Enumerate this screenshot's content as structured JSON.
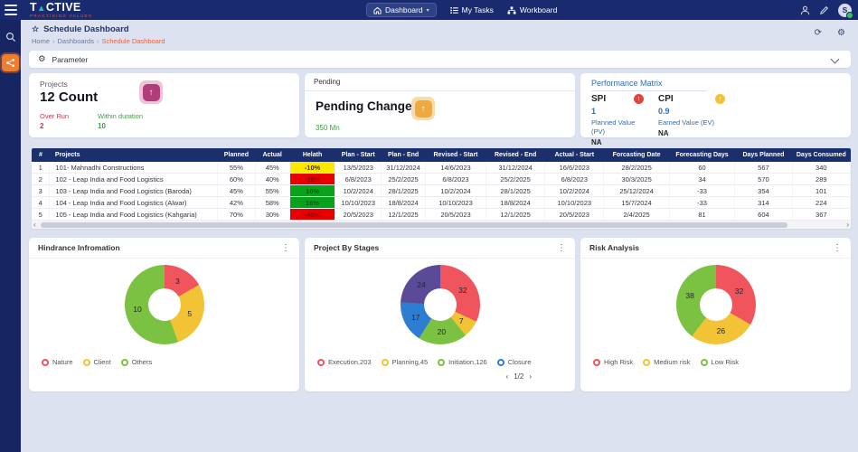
{
  "app": {
    "logo_title_left": "T",
    "logo_title_right": "CTIVE",
    "logo_subtitle": "PRACTISING VALUES",
    "nav": [
      {
        "label": "Dashboard"
      },
      {
        "label": "My Tasks"
      },
      {
        "label": "Workboard"
      }
    ],
    "avatar_initial": "S"
  },
  "icons": {
    "star": "☆",
    "refresh": "⟳",
    "settings": "⚙",
    "kebab": "⋮",
    "up_arrow": "↑",
    "caret_down": "▾",
    "prev": "‹",
    "next": "›",
    "triangle": "▲"
  },
  "breadcrumb": {
    "page_title": "Schedule Dashboard",
    "items": [
      "Home",
      "Dashboards",
      "Schedule Dashboard"
    ],
    "separator": "›"
  },
  "parameter_bar": {
    "label": "Parameter"
  },
  "cards": {
    "projects": {
      "title": "Projects",
      "count": "12 Count",
      "overrun_label": "Over Run",
      "overrun_value": "2",
      "within_label": "Within duration",
      "within_value": "10"
    },
    "pending": {
      "header": "Pending",
      "title": "Pending Change O",
      "value": "350 Mn"
    },
    "performance": {
      "title": "Performance Matrix",
      "spi_label": "SPI",
      "spi_value": "1",
      "pv_label": "Planned Value (PV)",
      "pv_value": "NA",
      "cpi_label": "CPI",
      "cpi_value": "0.9",
      "ev_label": "Earned Value (EV)",
      "ev_value": "NA"
    }
  },
  "table": {
    "columns": [
      "#",
      "Projects",
      "Planned",
      "Actual",
      "Helath",
      "Plan - Start",
      "Plan - End",
      "Revised - Start",
      "Revised - End",
      "Actual - Start",
      "Forcasting Date",
      "Forecasting Days",
      "Days Planned",
      "Days Consumed"
    ],
    "rows": [
      {
        "health": "yellow",
        "cells": [
          "1",
          "101- Mahnadhi Constructions",
          "55%",
          "45%",
          "-10%",
          "13/5/2023",
          "31/12/2024",
          "14/6/2023",
          "31/12/2024",
          "16/6/2023",
          "28/2/2025",
          "60",
          "567",
          "340"
        ]
      },
      {
        "health": "red",
        "cells": [
          "2",
          "102 - Leap India and Food Logistics",
          "60%",
          "40%",
          "-20%",
          "6/8/2023",
          "25/2/2025",
          "6/8/2023",
          "25/2/2025",
          "6/8/2023",
          "30/3/2025",
          "34",
          "570",
          "289"
        ]
      },
      {
        "health": "green",
        "cells": [
          "3",
          "103 - Leap India and Food Logistics (Baroda)",
          "45%",
          "55%",
          "10%",
          "10/2/2024",
          "28/1/2025",
          "10/2/2024",
          "28/1/2025",
          "10/2/2024",
          "25/12/2024",
          "-33",
          "354",
          "101"
        ]
      },
      {
        "health": "green",
        "cells": [
          "4",
          "104 - Leap India and Food Logistics (Alwar)",
          "42%",
          "58%",
          "16%",
          "10/10/2023",
          "18/8/2024",
          "10/10/2023",
          "18/8/2024",
          "10/10/2023",
          "15/7/2024",
          "-33",
          "314",
          "224"
        ]
      },
      {
        "health": "red",
        "cells": [
          "5",
          "105 - Leap India and Food Logistics (Kahgaria)",
          "70%",
          "30%",
          "-40%",
          "20/5/2023",
          "12/1/2025",
          "20/5/2023",
          "12/1/2025",
          "20/5/2023",
          "2/4/2025",
          "81",
          "604",
          "367"
        ]
      }
    ],
    "health_colors": {
      "yellow": {
        "bg": "#ffe800",
        "text": "#333333"
      },
      "red": {
        "bg": "#e60000",
        "text": "#9e0000"
      },
      "green": {
        "bg": "#0aa11c",
        "text": "#075e11"
      }
    }
  },
  "chart_data": [
    {
      "type": "pie",
      "donut": true,
      "title": "Hindrance Infromation",
      "series": [
        {
          "name": "Nature",
          "value": 3,
          "color": "#f0545c"
        },
        {
          "name": "Client",
          "value": 5,
          "color": "#f2c335"
        },
        {
          "name": "Others",
          "value": 10,
          "color": "#7cc242"
        }
      ],
      "legend": [
        {
          "label": "Nature",
          "color": "#f0545c"
        },
        {
          "label": "Client",
          "color": "#f2c335"
        },
        {
          "label": "Others",
          "color": "#7cc242"
        }
      ],
      "legend_position": "bottom"
    },
    {
      "type": "pie",
      "donut": true,
      "title": "Project By Stages",
      "series": [
        {
          "name": "Execution",
          "value": 32,
          "color": "#f0545c"
        },
        {
          "name": "Planning",
          "value": 7,
          "color": "#f2c335"
        },
        {
          "name": "Initiation",
          "value": 20,
          "color": "#7cc242"
        },
        {
          "name": "Closure",
          "value": 17,
          "color": "#2d7dd2"
        },
        {
          "name": "",
          "value": 24,
          "color": "#5b4a98"
        }
      ],
      "legend": [
        {
          "label": "Execution,203",
          "color": "#f0545c"
        },
        {
          "label": "Planning,45",
          "color": "#f2c335"
        },
        {
          "label": "Initiation,126",
          "color": "#7cc242"
        },
        {
          "label": "Closure",
          "color": "#2d7dd2"
        }
      ],
      "pagination": "1/2",
      "legend_position": "bottom"
    },
    {
      "type": "pie",
      "donut": true,
      "title": "Risk Analysis",
      "series": [
        {
          "name": "High Risk",
          "value": 32,
          "color": "#f0545c"
        },
        {
          "name": "Medium risk",
          "value": 26,
          "color": "#f2c335"
        },
        {
          "name": "Low Risk",
          "value": 38,
          "color": "#7cc242"
        }
      ],
      "legend": [
        {
          "label": "High Risk",
          "color": "#f0545c"
        },
        {
          "label": "Medium risk",
          "color": "#f2c335"
        },
        {
          "label": "Low Risk",
          "color": "#7cc242"
        }
      ],
      "legend_position": "bottom"
    }
  ]
}
